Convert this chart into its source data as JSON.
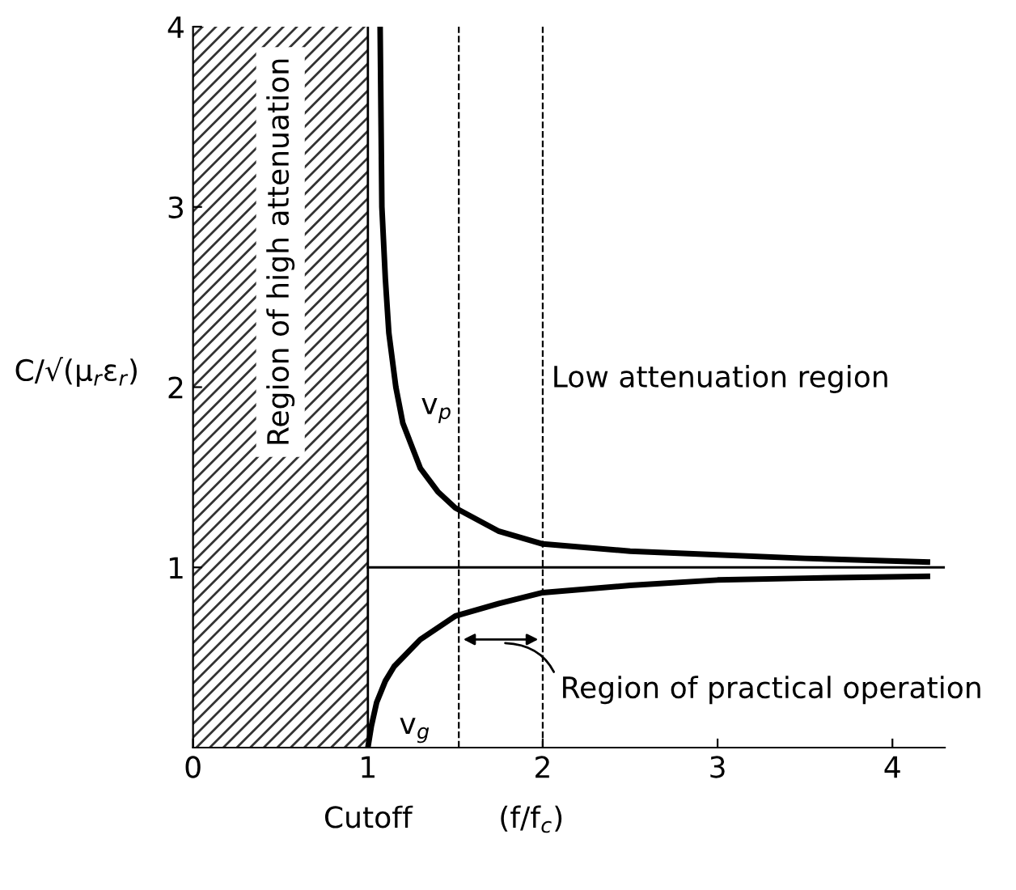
{
  "chart_data": {
    "type": "line",
    "xlabel": "(f/f$_{c}$)",
    "ylabel": "C/√(μ$_{r}$ε$_{r}$)",
    "xlim": [
      0,
      4.3
    ],
    "ylim": [
      0,
      4
    ],
    "xticks": [
      0,
      1,
      2,
      3,
      4
    ],
    "yticks": [
      1,
      2,
      3,
      4
    ],
    "grid": false,
    "legend": false,
    "marker": "none",
    "line_style": "solid",
    "series": [
      {
        "name": "v$_{p}$",
        "color": "#000000",
        "x": [
          1.07,
          1.08,
          1.1,
          1.12,
          1.16,
          1.2,
          1.3,
          1.4,
          1.5,
          1.75,
          2,
          2.5,
          3,
          3.5,
          4.2
        ],
        "values": [
          4,
          3.0,
          2.6,
          2.3,
          2.0,
          1.8,
          1.55,
          1.42,
          1.33,
          1.2,
          1.13,
          1.09,
          1.07,
          1.05,
          1.03
        ]
      },
      {
        "name": "v$_{g}$",
        "color": "#000000",
        "x": [
          1,
          1.02,
          1.05,
          1.1,
          1.15,
          1.3,
          1.5,
          1.75,
          2,
          2.5,
          3,
          3.5,
          4.2
        ],
        "values": [
          0,
          0.12,
          0.25,
          0.37,
          0.45,
          0.6,
          0.73,
          0.8,
          0.86,
          0.9,
          0.93,
          0.94,
          0.95
        ]
      }
    ],
    "ref_lines": [
      {
        "axis": "y",
        "value": 1,
        "color": "#000000",
        "line_style": "solid"
      },
      {
        "axis": "x",
        "value": 1,
        "label": "Cutoff",
        "color": "#000000",
        "line_style": "solid"
      },
      {
        "axis": "x",
        "value": 1.52,
        "color": "#000000",
        "line_style": "dashed"
      },
      {
        "axis": "x",
        "value": 2,
        "color": "#000000",
        "line_style": "dashed"
      }
    ],
    "bands": [
      {
        "axis": "x",
        "from": 0,
        "to": 1,
        "label": "Region of high attenuation",
        "color": "#333333"
      }
    ],
    "annotations": [
      "Low attenuation region",
      "Region of practical operation"
    ]
  }
}
